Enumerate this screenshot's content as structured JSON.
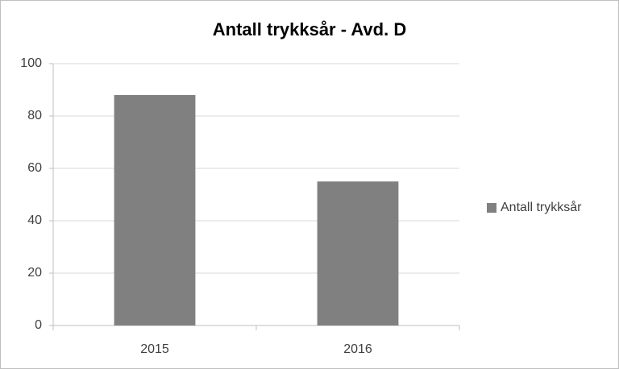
{
  "chart_data": {
    "type": "bar",
    "title": "Antall trykksår - Avd. D",
    "categories": [
      "2015",
      "2016"
    ],
    "series": [
      {
        "name": "Antall trykksår",
        "color": "#808080",
        "values": [
          88,
          55
        ]
      }
    ],
    "ylim": [
      0,
      100
    ],
    "yticks": [
      0,
      20,
      40,
      60,
      80,
      100
    ],
    "grid": true,
    "legend": "right"
  }
}
